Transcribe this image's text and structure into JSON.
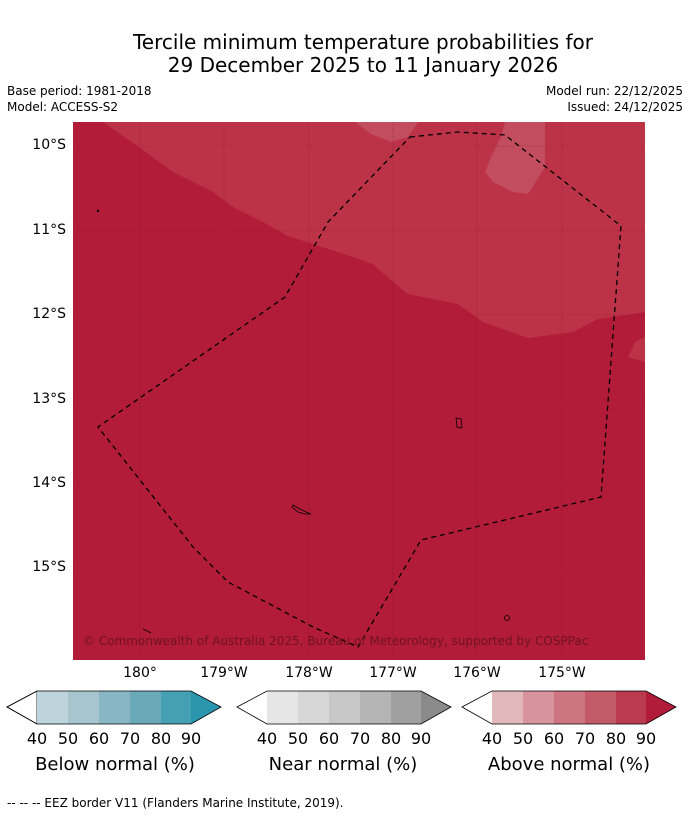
{
  "title_line1": "Tercile minimum temperature probabilities for",
  "title_line2": "29 December 2025 to 11 January 2026",
  "meta": {
    "base_period": "Base period: 1981-2018",
    "model": "Model: ACCESS-S2",
    "model_run": "Model run: 22/12/2025",
    "issued": "Issued: 24/12/2025"
  },
  "map": {
    "lat_labels": [
      "10°S",
      "11°S",
      "12°S",
      "13°S",
      "14°S",
      "15°S"
    ],
    "lon_labels": [
      "180°",
      "179°W",
      "178°W",
      "177°W",
      "176°W",
      "175°W"
    ],
    "copyright": "© Commonwealth of Australia 2025, Bureau of Meteorology, supported by COSPPac",
    "colors": {
      "above_80": "#bc3347",
      "above_90": "#b31c38",
      "grid": "#7a1020",
      "eez_border": "#000000"
    }
  },
  "legends": [
    {
      "name": "below",
      "label": "Below normal (%)",
      "ticks": [
        "40",
        "50",
        "60",
        "70",
        "80",
        "90"
      ],
      "colors": [
        "#ffffff",
        "#bdd4dd",
        "#a7c5ce",
        "#88b6c4",
        "#6aa9b8",
        "#44a0b2",
        "#2a96ad"
      ]
    },
    {
      "name": "near",
      "label": "Near normal (%)",
      "ticks": [
        "40",
        "50",
        "60",
        "70",
        "80",
        "90"
      ],
      "colors": [
        "#ffffff",
        "#e6e6e6",
        "#d7d7d7",
        "#c8c8c8",
        "#b4b4b4",
        "#a0a0a0",
        "#8a8a8a"
      ]
    },
    {
      "name": "above",
      "label": "Above normal (%)",
      "ticks": [
        "40",
        "50",
        "60",
        "70",
        "80",
        "90"
      ],
      "colors": [
        "#ffffff",
        "#e3b8bd",
        "#d8949c",
        "#cd7580",
        "#c35a68",
        "#bb3a4e",
        "#b01c3a"
      ]
    }
  ],
  "footer": "--  --  -- EEZ border V11 (Flanders Marine Institute, 2019)."
}
